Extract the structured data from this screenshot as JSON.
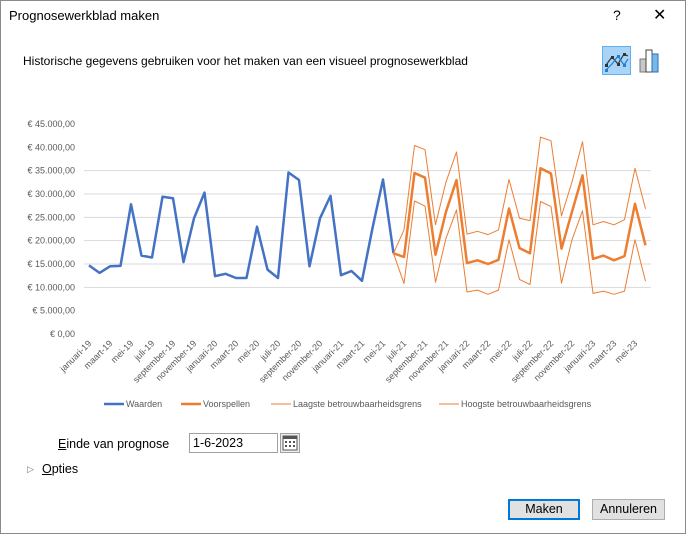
{
  "window": {
    "title": "Prognosewerkblad maken",
    "help": "?",
    "close": "✕"
  },
  "header": {
    "subtitle": "Historische gegevens gebruiken voor het maken van een visueel prognosewerkblad",
    "icons": [
      "line-chart-icon",
      "column-chart-icon"
    ],
    "selected_chart": "line"
  },
  "chart_data": {
    "type": "line",
    "ylim": [
      0,
      45000
    ],
    "yticks": [
      "€ 0,00",
      "€ 5.000,00",
      "€ 10.000,00",
      "€ 15.000,00",
      "€ 20.000,00",
      "€ 25.000,00",
      "€ 30.000,00",
      "€ 35.000,00",
      "€ 40.000,00",
      "€ 45.000,00"
    ],
    "ytick_values": [
      0,
      5000,
      10000,
      15000,
      20000,
      25000,
      30000,
      35000,
      40000,
      45000
    ],
    "grid": true,
    "legend_position": "bottom",
    "xtick_labels": [
      "januari-19",
      "maart-19",
      "mei-19",
      "juli-19",
      "september-19",
      "november-19",
      "januari-20",
      "maart-20",
      "mei-20",
      "juli-20",
      "september-20",
      "november-20",
      "januari-21",
      "maart-21",
      "mei-21",
      "juli-21",
      "september-21",
      "november-21",
      "januari-22",
      "maart-22",
      "mei-22",
      "juli-22",
      "september-22",
      "november-22",
      "januari-23",
      "maart-23",
      "mei-23"
    ],
    "x_start": "januari-19",
    "x_end": "juni-23",
    "x_interval": "month",
    "series": [
      {
        "name": "Waarden",
        "color": "#4472c4",
        "start_index": 0,
        "values": [
          14700,
          13100,
          14500,
          14600,
          27800,
          16800,
          16400,
          29400,
          29100,
          15400,
          24800,
          30300,
          12400,
          12900,
          12000,
          12000,
          23000,
          13800,
          12000,
          34600,
          33000,
          14500,
          24800,
          29600,
          12600,
          13500,
          11400,
          22700,
          33100,
          17300
        ]
      },
      {
        "name": "Voorspellen",
        "color": "#ed7d31",
        "start_index": 29,
        "values": [
          17300,
          16500,
          34500,
          33500,
          17000,
          26200,
          33000,
          15200,
          15800,
          15000,
          15900,
          26900,
          18400,
          17300,
          35500,
          34400,
          18300,
          26200,
          34000,
          16100,
          16800,
          15800,
          16700,
          27900,
          19000
        ]
      },
      {
        "name": "Laagste betrouwbaarheidsgrens",
        "color": "#ed7d31",
        "start_index": 29,
        "values": [
          17300,
          10800,
          28500,
          27400,
          11100,
          20500,
          26600,
          9000,
          9400,
          8500,
          9400,
          20200,
          11700,
          10600,
          28400,
          27300,
          10900,
          20200,
          26400,
          8700,
          9200,
          8500,
          9200,
          20200,
          11300
        ]
      },
      {
        "name": "Hoogste betrouwbaarheidsgrens",
        "color": "#ed7d31",
        "start_index": 29,
        "values": [
          17300,
          22300,
          40400,
          39500,
          23400,
          32600,
          39000,
          21400,
          22000,
          21300,
          22300,
          33100,
          24800,
          24300,
          42200,
          41400,
          25300,
          32600,
          41200,
          23400,
          24100,
          23400,
          24500,
          35500,
          26800
        ]
      }
    ]
  },
  "form": {
    "end_label_prefix": "E",
    "end_label_rest": "inde van prognose",
    "end_value": "1-6-2023",
    "options_prefix": "O",
    "options_rest": "pties"
  },
  "buttons": {
    "create": "Maken",
    "cancel": "Annuleren"
  }
}
